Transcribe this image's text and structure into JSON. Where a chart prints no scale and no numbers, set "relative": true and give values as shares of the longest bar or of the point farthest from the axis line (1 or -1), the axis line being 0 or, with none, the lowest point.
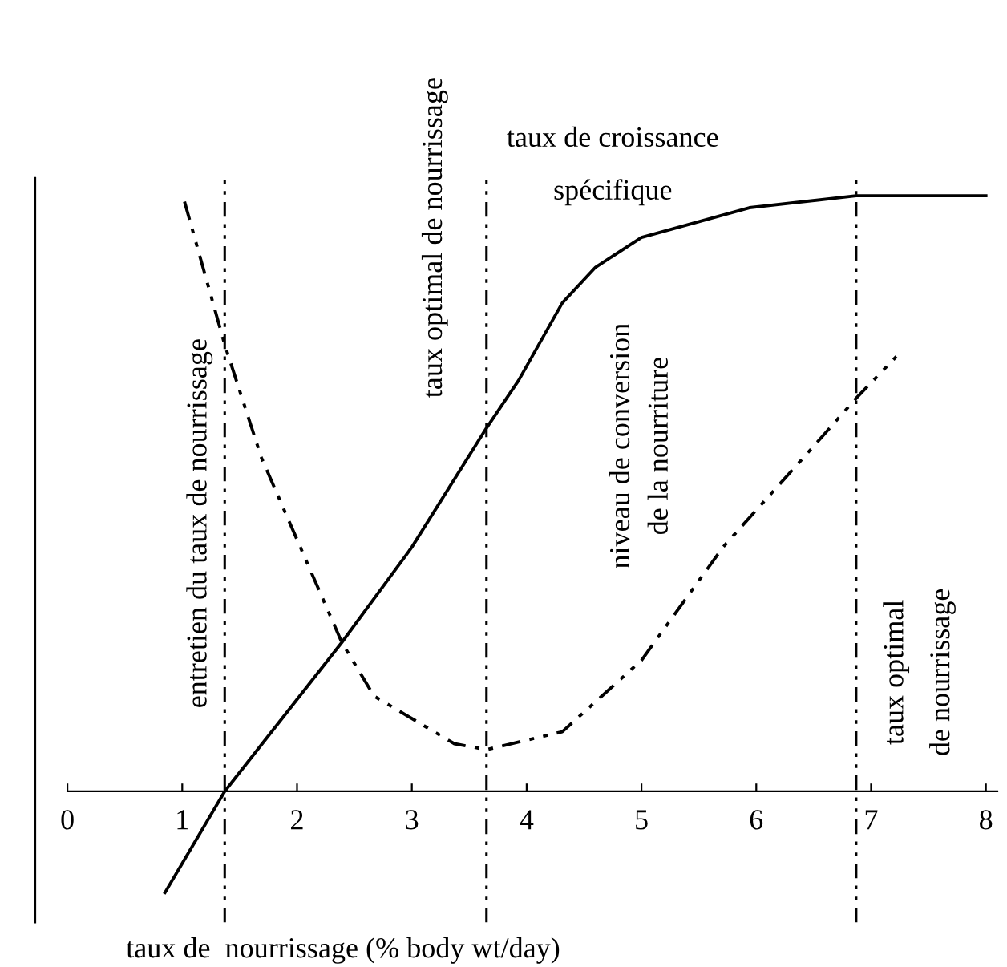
{
  "chart_data": {
    "type": "line",
    "relative": true,
    "xlabel": "taux de  nourrissage (% body wt/day)",
    "xlim": [
      -0.28,
      8.1
    ],
    "xticks": [
      0,
      1,
      2,
      3,
      4,
      5,
      6,
      7,
      8
    ],
    "grid": false,
    "legend": false,
    "marker": "none",
    "series": [
      {
        "name": "taux de croissance\n\nspécifique",
        "color": "#000000",
        "line_style": "solid",
        "x": [
          0.85,
          1.37,
          2.39,
          3.0,
          3.65,
          3.93,
          4.31,
          4.6,
          5.0,
          5.94,
          6.87,
          8.0
        ],
        "values": [
          -0.17,
          0,
          0.25,
          0.41,
          0.61,
          0.69,
          0.82,
          0.88,
          0.93,
          0.98,
          1.0,
          1.0
        ]
      },
      {
        "name": "niveau de conversion\nde la nourriture",
        "color": "#000000",
        "line_style": "dashdot",
        "x": [
          1.02,
          1.37,
          1.69,
          2.39,
          2.67,
          3.37,
          3.65,
          4.31,
          5.0,
          5.71,
          6.41,
          6.87,
          7.22
        ],
        "values": [
          0.99,
          0.75,
          0.56,
          0.25,
          0.16,
          0.08,
          0.07,
          0.1,
          0.22,
          0.41,
          0.56,
          0.66,
          0.73
        ]
      }
    ],
    "ref_lines": [
      {
        "axis": "x",
        "value": 1.37,
        "label": "entretien du taux de nourrissage",
        "line_style": "dashdot"
      },
      {
        "axis": "x",
        "value": 3.65,
        "label": "taux optimal de nourrissage",
        "line_style": "dashdot"
      },
      {
        "axis": "x",
        "value": 6.87,
        "label": "taux optimal\nde nourrissage",
        "line_style": "dashdot"
      }
    ]
  }
}
